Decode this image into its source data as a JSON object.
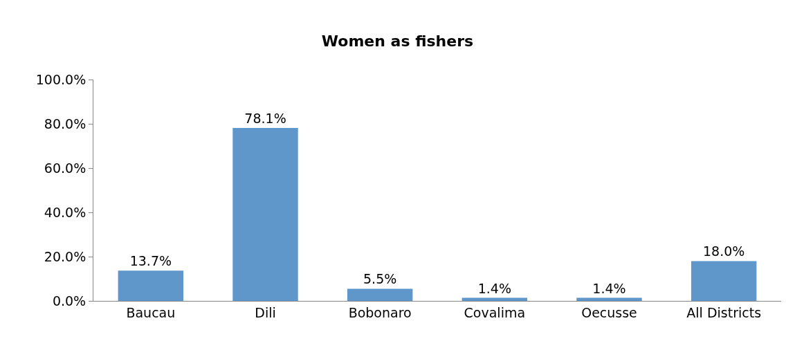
{
  "chart_data": {
    "type": "bar",
    "title": "Women as fishers",
    "categories": [
      "Baucau",
      "Dili",
      "Bobonaro",
      "Covalima",
      "Oecusse",
      "All Districts"
    ],
    "values": [
      13.7,
      78.1,
      5.5,
      1.4,
      1.4,
      18.0
    ],
    "value_labels": [
      "13.7%",
      "78.1%",
      "5.5%",
      "1.4%",
      "1.4%",
      "18.0%"
    ],
    "color": "#6097cb",
    "ylim": [
      0,
      100
    ],
    "yticks": [
      {
        "value": 0,
        "label": "0.0%"
      },
      {
        "value": 20,
        "label": "20.0%"
      },
      {
        "value": 40,
        "label": "40.0%"
      },
      {
        "value": 60,
        "label": "60.0%"
      },
      {
        "value": 80,
        "label": "80.0%"
      },
      {
        "value": 100,
        "label": "100.0%"
      }
    ],
    "tick_labels": "xy"
  }
}
